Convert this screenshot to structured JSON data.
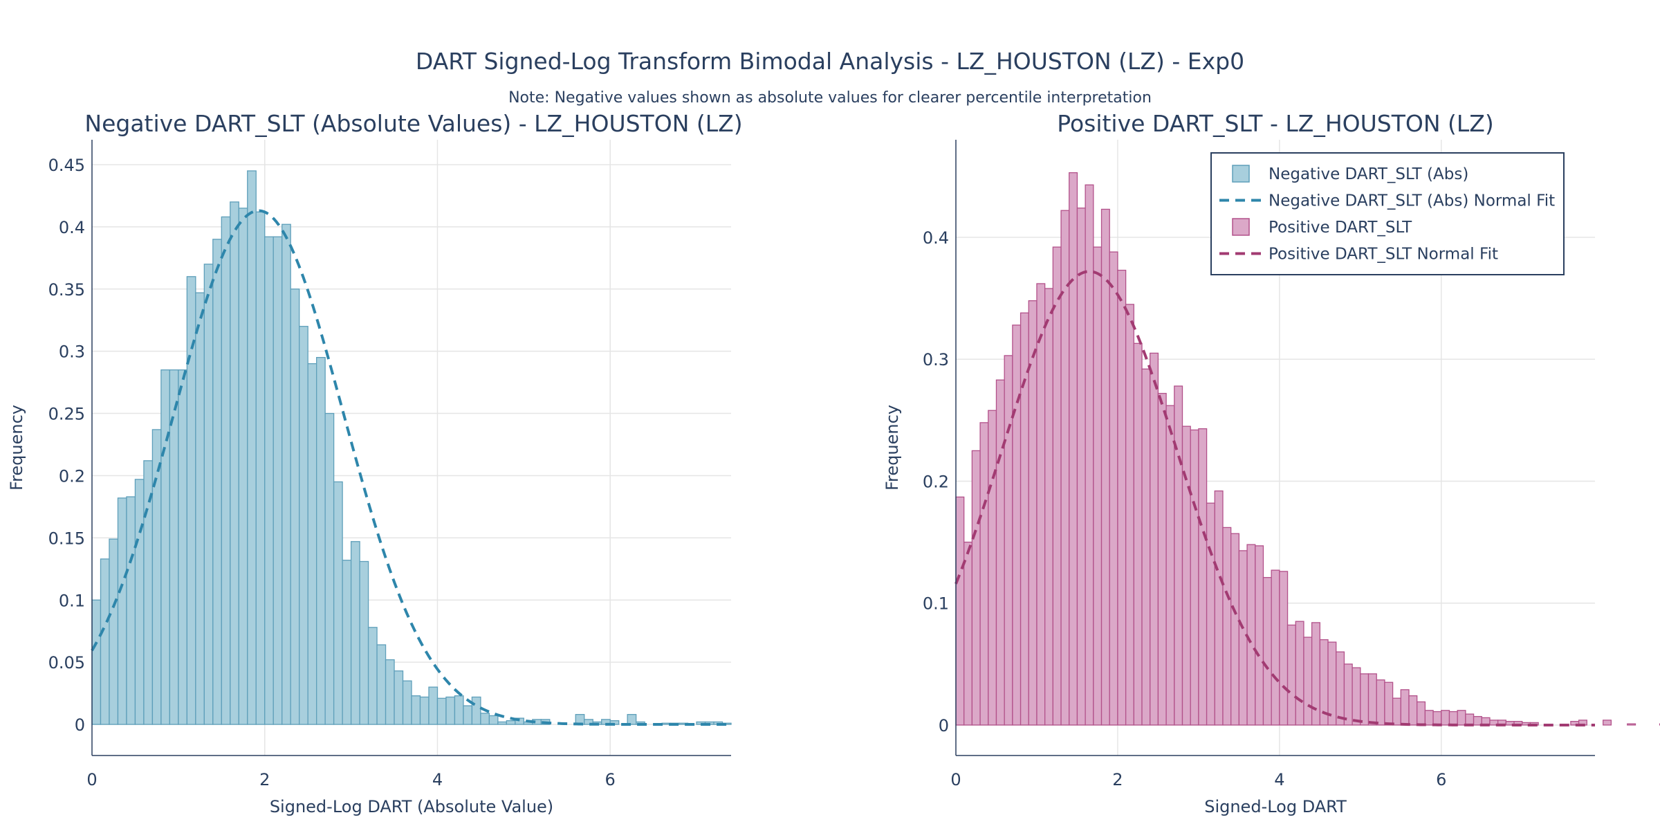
{
  "title": "DART Signed-Log Transform Bimodal Analysis - LZ_HOUSTON (LZ) - Exp0",
  "subtitle": "Note: Negative values shown as absolute values for clearer percentile interpretation",
  "colors": {
    "neg_fill": "#a8cfdd",
    "neg_edge": "#5e9fba",
    "neg_fit": "#2e86ab",
    "pos_fill": "#dba8c8",
    "pos_edge": "#b2518a",
    "pos_fit": "#a23b72",
    "grid": "#e5e5e5",
    "axis": "#2a3f5f"
  },
  "legend": [
    {
      "label": "Negative DART_SLT (Abs)",
      "kind": "box",
      "panel": "neg"
    },
    {
      "label": "Negative DART_SLT (Abs) Normal Fit",
      "kind": "dash",
      "panel": "neg"
    },
    {
      "label": "Positive DART_SLT",
      "kind": "box",
      "panel": "pos"
    },
    {
      "label": "Positive DART_SLT Normal Fit",
      "kind": "dash",
      "panel": "pos"
    }
  ],
  "chart_data": [
    {
      "type": "bar",
      "panel": "neg",
      "title": "Negative DART_SLT (Absolute Values) - LZ_HOUSTON (LZ)",
      "xlabel": "Signed-Log DART (Absolute Value)",
      "ylabel": "Frequency",
      "xlim": [
        0,
        7.4
      ],
      "ylim": [
        -0.025,
        0.47
      ],
      "xticks": [
        0,
        2,
        4,
        6
      ],
      "yticks": [
        0,
        0.05,
        0.1,
        0.15,
        0.2,
        0.25,
        0.3,
        0.35,
        0.4,
        0.45
      ],
      "ytick_labels": [
        "0",
        "0.05",
        "0.1",
        "0.15",
        "0.2",
        "0.25",
        "0.3",
        "0.35",
        "0.4",
        "0.45"
      ],
      "bin_start": 0,
      "bin_width": 0.1,
      "histogram": [
        0.1,
        0.133,
        0.149,
        0.182,
        0.183,
        0.197,
        0.212,
        0.237,
        0.285,
        0.285,
        0.285,
        0.36,
        0.347,
        0.37,
        0.39,
        0.408,
        0.42,
        0.415,
        0.445,
        0.412,
        0.392,
        0.392,
        0.402,
        0.35,
        0.32,
        0.29,
        0.295,
        0.25,
        0.195,
        0.132,
        0.147,
        0.131,
        0.078,
        0.064,
        0.052,
        0.043,
        0.035,
        0.023,
        0.022,
        0.03,
        0.021,
        0.022,
        0.023,
        0.015,
        0.022,
        0.009,
        0.007,
        0.002,
        0.003,
        0.005,
        0.002,
        0.004,
        0.004,
        0.0,
        0.0,
        0.0,
        0.008,
        0.004,
        0.002,
        0.004,
        0.003,
        0.0,
        0.008,
        0.002,
        0.0,
        0.0,
        0.001,
        0.001,
        0.001,
        0.0,
        0.002,
        0.002,
        0.002,
        0.001
      ],
      "fit": {
        "name": "Negative DART_SLT (Abs) Normal Fit",
        "mean": 1.93,
        "std": 0.98,
        "peak": 0.413
      }
    },
    {
      "type": "bar",
      "panel": "pos",
      "title": "Positive DART_SLT - LZ_HOUSTON (LZ)",
      "xlabel": "Signed-Log DART",
      "ylabel": "Frequency",
      "xlim": [
        0,
        7.9
      ],
      "ylim": [
        -0.025,
        0.48
      ],
      "xticks": [
        0,
        2,
        4,
        6
      ],
      "yticks": [
        0,
        0.1,
        0.2,
        0.3,
        0.4
      ],
      "ytick_labels": [
        "0",
        "0.1",
        "0.2",
        "0.3",
        "0.4"
      ],
      "bin_start": 0,
      "bin_width": 0.1,
      "histogram": [
        0.187,
        0.15,
        0.225,
        0.248,
        0.258,
        0.283,
        0.303,
        0.328,
        0.338,
        0.348,
        0.362,
        0.358,
        0.392,
        0.422,
        0.453,
        0.424,
        0.443,
        0.392,
        0.423,
        0.388,
        0.373,
        0.345,
        0.313,
        0.292,
        0.305,
        0.272,
        0.262,
        0.278,
        0.245,
        0.242,
        0.243,
        0.182,
        0.192,
        0.162,
        0.157,
        0.143,
        0.148,
        0.147,
        0.121,
        0.127,
        0.126,
        0.082,
        0.085,
        0.072,
        0.084,
        0.07,
        0.068,
        0.06,
        0.05,
        0.047,
        0.042,
        0.042,
        0.037,
        0.035,
        0.022,
        0.029,
        0.024,
        0.019,
        0.012,
        0.011,
        0.012,
        0.011,
        0.012,
        0.009,
        0.007,
        0.006,
        0.004,
        0.004,
        0.003,
        0.003,
        0.002,
        0.002,
        0.0,
        0.0,
        0.0,
        0.0,
        0.003,
        0.004,
        0.0,
        0.0,
        0.004,
        0.0,
        0.0,
        0.001,
        0.0,
        0.0,
        0.0,
        0.001,
        0.002,
        0.003,
        0.004
      ],
      "fit": {
        "name": "Positive DART_SLT Normal Fit",
        "mean": 1.65,
        "std": 1.08,
        "peak": 0.372
      }
    }
  ]
}
